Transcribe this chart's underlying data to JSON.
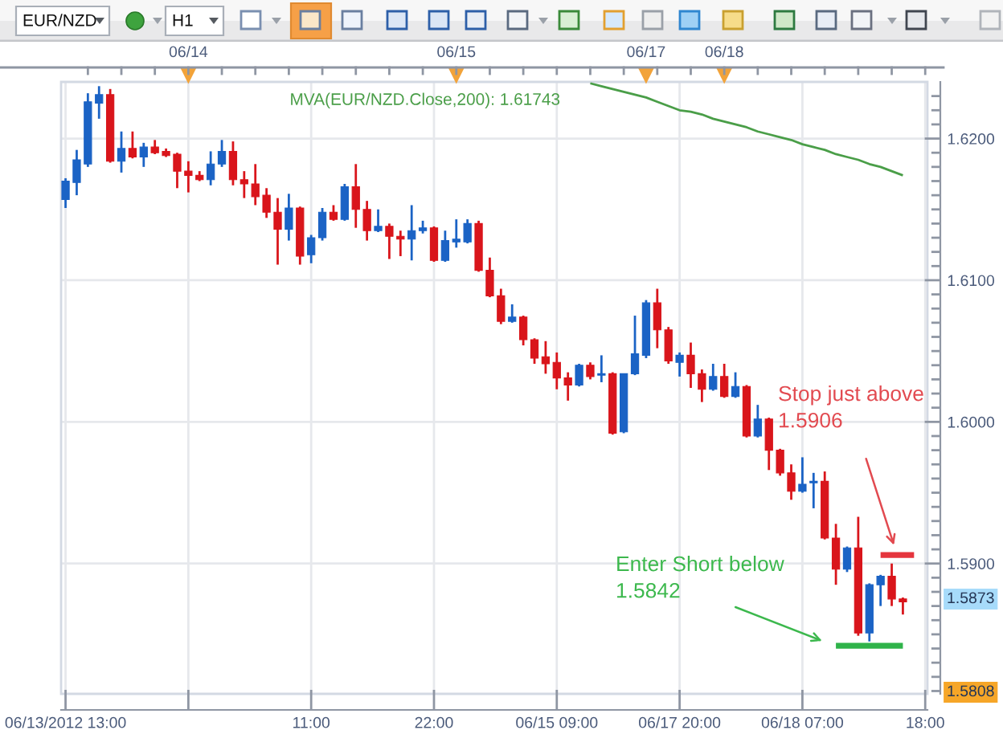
{
  "chart_data": {
    "type": "candlestick",
    "title": "EUR/NZD",
    "subtitle": "H1",
    "categories": [
      "06/13/2012 13:00",
      null,
      null,
      null,
      null,
      null,
      null,
      null,
      null,
      null,
      null,
      null,
      null,
      null,
      null,
      null,
      null,
      null,
      null,
      null,
      null,
      null,
      "11:00",
      null,
      null,
      null,
      null,
      null,
      null,
      null,
      null,
      null,
      null,
      "22:00",
      null,
      null,
      null,
      null,
      null,
      null,
      null,
      null,
      null,
      null,
      "06/15 09:00",
      null,
      null,
      null,
      null,
      null,
      null,
      null,
      null,
      null,
      null,
      "06/17 20:00",
      null,
      null,
      null,
      null,
      null,
      null,
      null,
      null,
      null,
      null,
      "06/18 07:00",
      null,
      null,
      null,
      null,
      null,
      null,
      null,
      null,
      null,
      null,
      "18:00"
    ],
    "ohlc": [
      [
        1.6157,
        1.6172,
        1.6151,
        1.617
      ],
      [
        1.6169,
        1.6192,
        1.616,
        1.6185
      ],
      [
        1.6182,
        1.6232,
        1.618,
        1.6226
      ],
      [
        1.6225,
        1.6237,
        1.6214,
        1.6231
      ],
      [
        1.6231,
        1.6235,
        1.6183,
        1.6184
      ],
      [
        1.6184,
        1.6205,
        1.6176,
        1.6193
      ],
      [
        1.6193,
        1.6205,
        1.6186,
        1.6187
      ],
      [
        1.6187,
        1.6197,
        1.618,
        1.6194
      ],
      [
        1.6194,
        1.6199,
        1.6189,
        1.619
      ],
      [
        1.6191,
        1.6193,
        1.6187,
        1.6188
      ],
      [
        1.6189,
        1.619,
        1.6165,
        1.6177
      ],
      [
        1.6177,
        1.6184,
        1.6162,
        1.6174
      ],
      [
        1.6174,
        1.6177,
        1.617,
        1.6171
      ],
      [
        1.6171,
        1.6191,
        1.6167,
        1.6182
      ],
      [
        1.6182,
        1.6199,
        1.618,
        1.6191
      ],
      [
        1.6191,
        1.6198,
        1.6167,
        1.6171
      ],
      [
        1.6171,
        1.6177,
        1.6158,
        1.6168
      ],
      [
        1.6168,
        1.6182,
        1.6153,
        1.6159
      ],
      [
        1.616,
        1.6165,
        1.6144,
        1.6148
      ],
      [
        1.6148,
        1.6158,
        1.6111,
        1.6136
      ],
      [
        1.6136,
        1.6161,
        1.6128,
        1.6151
      ],
      [
        1.6151,
        1.6152,
        1.6111,
        1.6117
      ],
      [
        1.6118,
        1.6132,
        1.6112,
        1.613
      ],
      [
        1.613,
        1.6151,
        1.6128,
        1.6148
      ],
      [
        1.6148,
        1.6153,
        1.6142,
        1.6143
      ],
      [
        1.6143,
        1.6168,
        1.6142,
        1.6166
      ],
      [
        1.6166,
        1.6182,
        1.6137,
        1.615
      ],
      [
        1.615,
        1.6156,
        1.6128,
        1.6135
      ],
      [
        1.6135,
        1.615,
        1.6134,
        1.6138
      ],
      [
        1.6138,
        1.614,
        1.6115,
        1.6131
      ],
      [
        1.6131,
        1.6135,
        1.6117,
        1.6129
      ],
      [
        1.6129,
        1.6153,
        1.6114,
        1.6135
      ],
      [
        1.6135,
        1.6142,
        1.6133,
        1.6137
      ],
      [
        1.6137,
        1.6138,
        1.6113,
        1.6114
      ],
      [
        1.6114,
        1.6135,
        1.6113,
        1.6128
      ],
      [
        1.6127,
        1.6143,
        1.6123,
        1.6129
      ],
      [
        1.6127,
        1.6143,
        1.6126,
        1.614
      ],
      [
        1.614,
        1.6142,
        1.6106,
        1.6107
      ],
      [
        1.6107,
        1.6116,
        1.6088,
        1.6089
      ],
      [
        1.6089,
        1.6094,
        1.6069,
        1.6071
      ],
      [
        1.6071,
        1.6083,
        1.607,
        1.6074
      ],
      [
        1.6074,
        1.6075,
        1.6054,
        1.6058
      ],
      [
        1.6058,
        1.6059,
        1.6041,
        1.6045
      ],
      [
        1.6046,
        1.6057,
        1.6034,
        1.6041
      ],
      [
        1.6042,
        1.6049,
        1.6023,
        1.6031
      ],
      [
        1.6031,
        1.6035,
        1.6015,
        1.6026
      ],
      [
        1.6026,
        1.6041,
        1.6025,
        1.604
      ],
      [
        1.604,
        1.6042,
        1.603,
        1.6032
      ],
      [
        1.6033,
        1.6047,
        1.6028,
        1.6034
      ],
      [
        1.6034,
        1.6035,
        1.5991,
        1.5992
      ],
      [
        1.5993,
        1.6034,
        1.5992,
        1.6034
      ],
      [
        1.6034,
        1.6075,
        1.6033,
        1.6048
      ],
      [
        1.6047,
        1.6086,
        1.6045,
        1.6084
      ],
      [
        1.6084,
        1.6094,
        1.6052,
        1.6065
      ],
      [
        1.6065,
        1.6067,
        1.6041,
        1.6043
      ],
      [
        1.6042,
        1.6049,
        1.6032,
        1.6047
      ],
      [
        1.6047,
        1.6056,
        1.6024,
        1.6034
      ],
      [
        1.6034,
        1.6037,
        1.6014,
        1.6023
      ],
      [
        1.6023,
        1.6041,
        1.6022,
        1.6032
      ],
      [
        1.6032,
        1.6041,
        1.6017,
        1.6018
      ],
      [
        1.6018,
        1.6035,
        1.6017,
        1.6025
      ],
      [
        1.6025,
        1.6026,
        1.5989,
        1.599
      ],
      [
        1.599,
        1.6012,
        1.5989,
        1.6002
      ],
      [
        1.6002,
        1.6003,
        1.5966,
        1.598
      ],
      [
        1.598,
        1.5981,
        1.5962,
        1.5964
      ],
      [
        1.5964,
        1.597,
        1.5945,
        1.5951
      ],
      [
        1.5951,
        1.5975,
        1.595,
        1.5956
      ],
      [
        1.5957,
        1.5964,
        1.5939,
        1.5958
      ],
      [
        1.5958,
        1.5965,
        1.5917,
        1.5918
      ],
      [
        1.5918,
        1.5928,
        1.5885,
        1.5896
      ],
      [
        1.5896,
        1.5912,
        1.5894,
        1.5911
      ],
      [
        1.5911,
        1.5933,
        1.5849,
        1.5851
      ],
      [
        1.5851,
        1.5886,
        1.5845,
        1.5885
      ],
      [
        1.5885,
        1.5892,
        1.587,
        1.5891
      ],
      [
        1.5891,
        1.59,
        1.587,
        1.5875
      ],
      [
        1.5875,
        1.5876,
        1.5864,
        1.5873
      ],
      null,
      null
    ],
    "colors": [
      "#1b63c5",
      "#1b63c5",
      "#1b63c5",
      "#1b63c5",
      "#d9151b",
      "#1b63c5",
      "#d9151b",
      "#1b63c5",
      "#d9151b",
      "#d9151b",
      "#d9151b",
      "#d9151b",
      "#d9151b",
      "#1b63c5",
      "#1b63c5",
      "#d9151b",
      "#d9151b",
      "#d9151b",
      "#d9151b",
      "#d9151b",
      "#1b63c5",
      "#d9151b",
      "#1b63c5",
      "#1b63c5",
      "#d9151b",
      "#1b63c5",
      "#d9151b",
      "#d9151b",
      "#1b63c5",
      "#d9151b",
      "#d9151b",
      "#1b63c5",
      "#1b63c5",
      "#d9151b",
      "#1b63c5",
      "#1b63c5",
      "#1b63c5",
      "#d9151b",
      "#d9151b",
      "#d9151b",
      "#1b63c5",
      "#d9151b",
      "#d9151b",
      "#d9151b",
      "#d9151b",
      "#d9151b",
      "#1b63c5",
      "#d9151b",
      "#1b63c5",
      "#d9151b",
      "#1b63c5",
      "#1b63c5",
      "#1b63c5",
      "#d9151b",
      "#d9151b",
      "#1b63c5",
      "#d9151b",
      "#d9151b",
      "#1b63c5",
      "#d9151b",
      "#1b63c5",
      "#d9151b",
      "#1b63c5",
      "#d9151b",
      "#d9151b",
      "#d9151b",
      "#1b63c5",
      "#1b63c5",
      "#d9151b",
      "#d9151b",
      "#1b63c5",
      "#d9151b",
      "#1b63c5",
      "#1b63c5",
      "#d9151b",
      "#d9151b",
      null,
      null
    ],
    "series": [
      {
        "type": "line",
        "name": "MVA(EUR/NZD.Close,200): 1.61743",
        "color": "#4a9e48",
        "values": [
          null,
          null,
          null,
          null,
          null,
          null,
          null,
          null,
          null,
          null,
          null,
          null,
          null,
          null,
          null,
          null,
          null,
          null,
          null,
          null,
          null,
          null,
          null,
          null,
          null,
          null,
          null,
          null,
          null,
          null,
          null,
          null,
          null,
          null,
          null,
          null,
          null,
          null,
          null,
          null,
          null,
          null,
          null,
          null,
          null,
          null,
          null,
          1.6239,
          1.6237,
          1.6235,
          1.6233,
          1.6231,
          1.6229,
          1.6226,
          1.6223,
          1.622,
          1.6219,
          1.6217,
          1.6214,
          1.6212,
          1.621,
          1.6208,
          1.6205,
          1.6203,
          1.6201,
          1.6199,
          1.6196,
          1.6194,
          1.6192,
          1.6189,
          1.6187,
          1.6185,
          1.6182,
          1.618,
          1.6177,
          1.6174,
          null,
          null
        ]
      },
      {
        "type": "line",
        "color": "#e5353d",
        "values": [
          null,
          null,
          null,
          null,
          null,
          null,
          null,
          null,
          null,
          null,
          null,
          null,
          null,
          null,
          null,
          null,
          null,
          null,
          null,
          null,
          null,
          null,
          null,
          null,
          null,
          null,
          null,
          null,
          null,
          null,
          null,
          null,
          null,
          null,
          null,
          null,
          null,
          null,
          null,
          null,
          null,
          null,
          null,
          null,
          null,
          null,
          null,
          null,
          null,
          null,
          null,
          null,
          null,
          null,
          null,
          null,
          null,
          null,
          null,
          null,
          null,
          null,
          null,
          null,
          null,
          null,
          null,
          null,
          null,
          null,
          null,
          null,
          null,
          1.5906,
          1.5906,
          1.5906,
          1.5906,
          null
        ]
      },
      {
        "type": "line",
        "color": "#2fb34a",
        "values": [
          null,
          null,
          null,
          null,
          null,
          null,
          null,
          null,
          null,
          null,
          null,
          null,
          null,
          null,
          null,
          null,
          null,
          null,
          null,
          null,
          null,
          null,
          null,
          null,
          null,
          null,
          null,
          null,
          null,
          null,
          null,
          null,
          null,
          null,
          null,
          null,
          null,
          null,
          null,
          null,
          null,
          null,
          null,
          null,
          null,
          null,
          null,
          null,
          null,
          null,
          null,
          null,
          null,
          null,
          null,
          null,
          null,
          null,
          null,
          null,
          null,
          null,
          null,
          null,
          null,
          null,
          null,
          null,
          null,
          1.5842,
          1.5842,
          1.5842,
          1.5842,
          1.5842,
          1.5842,
          1.5842,
          null,
          null
        ]
      }
    ],
    "ylim": [
      1.5808,
      1.624
    ],
    "yticks": [
      {
        "value": 1.581,
        "label": null
      },
      {
        "value": 1.582,
        "label": null
      },
      {
        "value": 1.583,
        "label": null
      },
      {
        "value": 1.584,
        "label": null
      },
      {
        "value": 1.585,
        "label": null
      },
      {
        "value": 1.586,
        "label": null
      },
      {
        "value": 1.587,
        "label": null
      },
      {
        "value": 1.588,
        "label": null
      },
      {
        "value": 1.589,
        "label": null
      },
      {
        "value": 1.59,
        "label": "1.5900"
      },
      {
        "value": 1.591,
        "label": null
      },
      {
        "value": 1.592,
        "label": null
      },
      {
        "value": 1.593,
        "label": null
      },
      {
        "value": 1.594,
        "label": null
      },
      {
        "value": 1.595,
        "label": null
      },
      {
        "value": 1.596,
        "label": null
      },
      {
        "value": 1.597,
        "label": null
      },
      {
        "value": 1.598,
        "label": null
      },
      {
        "value": 1.599,
        "label": null
      },
      {
        "value": 1.6,
        "label": "1.6000"
      },
      {
        "value": 1.601,
        "label": null
      },
      {
        "value": 1.602,
        "label": null
      },
      {
        "value": 1.603,
        "label": null
      },
      {
        "value": 1.604,
        "label": null
      },
      {
        "value": 1.605,
        "label": null
      },
      {
        "value": 1.606,
        "label": null
      },
      {
        "value": 1.607,
        "label": null
      },
      {
        "value": 1.608,
        "label": null
      },
      {
        "value": 1.609,
        "label": null
      },
      {
        "value": 1.61,
        "label": "1.6100"
      },
      {
        "value": 1.611,
        "label": null
      },
      {
        "value": 1.612,
        "label": null
      },
      {
        "value": 1.613,
        "label": null
      },
      {
        "value": 1.614,
        "label": null
      },
      {
        "value": 1.615,
        "label": null
      },
      {
        "value": 1.616,
        "label": null
      },
      {
        "value": 1.617,
        "label": null
      },
      {
        "value": 1.618,
        "label": null
      },
      {
        "value": 1.619,
        "label": null
      },
      {
        "value": 1.62,
        "label": "1.6200"
      },
      {
        "value": 1.621,
        "label": null
      },
      {
        "value": 1.622,
        "label": null
      },
      {
        "value": 1.623,
        "label": null
      }
    ],
    "grid": true,
    "legend": "top",
    "annotations": [
      "06/14",
      "06/15",
      "06/17",
      "06/18",
      "Stop just above\n1.5906",
      "Enter Short below\n1.5842",
      "1.5873",
      "1.5808"
    ]
  }
}
